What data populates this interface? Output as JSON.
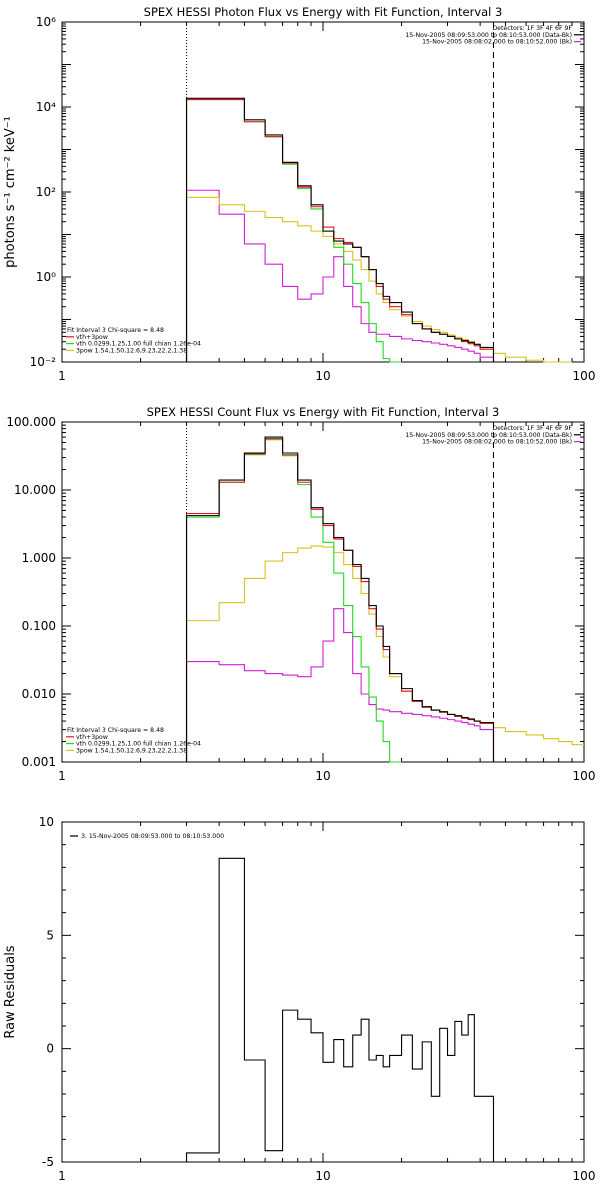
{
  "colors": {
    "data": "#000000",
    "total": "#e8141e",
    "thermal": "#22d81e",
    "powerlaw": "#d8c31e",
    "background": "#d01ed8"
  },
  "chart_data": [
    {
      "type": "line",
      "step": true,
      "title": "SPEX HESSI Photon Flux vs Energy with Fit Function, Interval 3",
      "xlabel": "",
      "ylabel": "photons s⁻¹ cm⁻² keV⁻¹",
      "xscale": "log",
      "yscale": "log",
      "xlim": [
        1,
        100
      ],
      "ylim": [
        0.01,
        1000000
      ],
      "x_ticks": [
        "1",
        "10",
        "100"
      ],
      "y_ticks": [
        "10⁻²",
        "10⁰",
        "10²",
        "10⁴",
        "10⁶"
      ],
      "vertical_lines": [
        {
          "x": 3,
          "style": "dotted"
        },
        {
          "x": 45,
          "style": "dashed"
        }
      ],
      "legend_top": [
        "Detectors: 1F 3F 4F 6F 9F",
        "15-Nov-2005 08:09:53.000 to 08:10:53.000 (Data-Bk)",
        "15-Nov-2005 08:08:02.000 to 08:10:52.000 (Bk)"
      ],
      "legend_bottom": [
        "Fit Interval 3    Chi-square = 8.48",
        "vth+3pow",
        "vth 0.0299,1.25,1.00  full chian 1.26e-04",
        "3pow 1.54,1.50,12.6,9.23,22.2,1.38"
      ],
      "edges": [
        3,
        4,
        5,
        6,
        7,
        8,
        9,
        10,
        11,
        12,
        13,
        14,
        15,
        16,
        17,
        18,
        20,
        22,
        24,
        26,
        28,
        30,
        32,
        34,
        36,
        38,
        40,
        45,
        50,
        60,
        70,
        80,
        90
      ],
      "series": [
        {
          "name": "Data-Bk",
          "color": "#000000",
          "values": [
            16000,
            16000,
            5000,
            2200,
            500,
            140,
            50,
            12,
            7,
            6,
            5,
            3,
            1.5,
            0.7,
            0.35,
            0.25,
            0.15,
            0.08,
            0.06,
            0.05,
            0.045,
            0.04,
            0.035,
            0.032,
            0.029,
            0.026,
            0.022,
            null,
            null,
            null,
            null,
            null
          ]
        },
        {
          "name": "vth+3pow",
          "color": "#e8141e",
          "values": [
            15000,
            15000,
            4500,
            2000,
            480,
            130,
            45,
            15,
            8,
            6.5,
            5,
            3,
            1.5,
            0.6,
            0.3,
            0.2,
            0.13,
            0.08,
            0.06,
            0.05,
            0.045,
            0.04,
            0.035,
            0.03,
            0.027,
            0.024,
            0.02,
            null,
            null,
            null,
            null,
            null
          ]
        },
        {
          "name": "vth",
          "color": "#22d81e",
          "values": [
            15000,
            15000,
            4500,
            2000,
            450,
            120,
            40,
            12,
            5,
            2,
            0.7,
            0.25,
            0.08,
            0.03,
            0.012,
            0.005,
            null,
            null,
            null,
            null,
            null,
            null,
            null,
            null,
            null,
            null,
            null,
            null,
            null,
            null,
            null,
            null
          ]
        },
        {
          "name": "3pow",
          "color": "#d8c31e",
          "values": [
            75,
            50,
            35,
            25,
            20,
            16,
            12,
            9,
            6,
            4,
            2.5,
            1.5,
            0.8,
            0.4,
            0.25,
            0.17,
            0.12,
            0.09,
            0.07,
            0.058,
            0.05,
            0.043,
            0.038,
            0.034,
            0.03,
            0.026,
            0.02,
            0.016,
            0.013,
            0.011,
            0.01,
            0.01
          ]
        },
        {
          "name": "Bk",
          "color": "#d01ed8",
          "values": [
            110,
            30,
            6,
            2,
            0.6,
            0.3,
            0.4,
            1,
            3,
            0.6,
            0.2,
            0.08,
            0.05,
            0.045,
            0.045,
            0.04,
            0.035,
            0.032,
            0.03,
            0.028,
            0.026,
            0.024,
            0.022,
            0.02,
            0.018,
            0.016,
            0.013,
            null,
            null,
            null,
            null,
            null
          ]
        }
      ]
    },
    {
      "type": "line",
      "step": true,
      "title": "SPEX HESSI Count Flux vs Energy with Fit Function, Interval 3",
      "xlabel": "",
      "ylabel": "",
      "xscale": "log",
      "yscale": "log",
      "xlim": [
        1,
        100
      ],
      "ylim": [
        0.001,
        100
      ],
      "x_ticks": [
        "1",
        "10",
        "100"
      ],
      "y_ticks": [
        "0.001",
        "0.010",
        "0.100",
        "1.000",
        "10.000",
        "100.000"
      ],
      "vertical_lines": [
        {
          "x": 3,
          "style": "dotted"
        },
        {
          "x": 45,
          "style": "dashed"
        }
      ],
      "legend_top": [
        "Detectors: 1F 3F 4F 6F 9F",
        "15-Nov-2005 08:09:53.000 to 08:10:53.000 (Data-Bk)",
        "15-Nov-2005 08:08:02.000 to 08:10:52.000 (Bk)"
      ],
      "legend_bottom": [
        "Fit Interval 3    Chi-square = 8.48",
        "vth+3pow",
        "vth 0.0299,1.25,1.00  full chian 1.26e-04",
        "3pow 1.54,1.50,12.6,9.23,22.2,1.38"
      ],
      "edges": [
        3,
        4,
        5,
        6,
        7,
        8,
        9,
        10,
        11,
        12,
        13,
        14,
        15,
        16,
        17,
        18,
        20,
        22,
        24,
        26,
        28,
        30,
        32,
        34,
        36,
        38,
        40,
        45,
        50,
        60,
        70,
        80,
        90,
        100
      ],
      "series": [
        {
          "name": "Data-Bk",
          "color": "#000000",
          "values": [
            4.2,
            14,
            35,
            60,
            35,
            14,
            5.5,
            3.2,
            2.0,
            1.3,
            0.8,
            0.5,
            0.2,
            0.1,
            0.05,
            0.02,
            0.012,
            0.008,
            0.0065,
            0.0058,
            0.0055,
            0.005,
            0.0048,
            0.0045,
            0.0043,
            0.004,
            0.0038,
            null,
            null,
            null,
            null,
            null,
            null
          ]
        },
        {
          "name": "vth+3pow",
          "color": "#e8141e",
          "values": [
            4.5,
            13,
            34,
            57,
            33,
            13,
            5.2,
            3.0,
            1.9,
            1.3,
            0.75,
            0.45,
            0.18,
            0.09,
            0.045,
            0.02,
            0.011,
            0.0078,
            0.0064,
            0.0058,
            0.0054,
            0.005,
            0.0047,
            0.0044,
            0.0042,
            0.004,
            0.0037,
            null,
            null,
            null,
            null,
            null,
            null
          ]
        },
        {
          "name": "vth",
          "color": "#22d81e",
          "values": [
            4.0,
            13,
            33,
            55,
            32,
            12,
            4.0,
            1.7,
            0.6,
            0.2,
            0.07,
            0.025,
            0.009,
            0.004,
            0.002,
            0.0009,
            null,
            null,
            null,
            null,
            null,
            null,
            null,
            null,
            null,
            null,
            null,
            null,
            null,
            null,
            null,
            null,
            null
          ]
        },
        {
          "name": "3pow",
          "color": "#d8c31e",
          "values": [
            0.12,
            0.22,
            0.5,
            0.9,
            1.2,
            1.4,
            1.5,
            1.45,
            1.2,
            0.8,
            0.5,
            0.3,
            0.15,
            0.07,
            0.035,
            0.018,
            0.011,
            0.0078,
            0.0064,
            0.0058,
            0.0054,
            0.005,
            0.0047,
            0.0044,
            0.0042,
            0.004,
            0.0037,
            0.0032,
            0.0028,
            0.0025,
            0.0022,
            0.002,
            0.0018
          ]
        },
        {
          "name": "Bk",
          "color": "#d01ed8",
          "values": [
            0.03,
            0.027,
            0.022,
            0.02,
            0.019,
            0.018,
            0.025,
            0.06,
            0.18,
            0.08,
            0.02,
            0.01,
            0.007,
            0.006,
            0.0058,
            0.0055,
            0.0052,
            0.005,
            0.0048,
            0.0046,
            0.0044,
            0.0042,
            0.004,
            0.0038,
            0.0036,
            0.0034,
            0.003,
            null,
            null,
            null,
            null,
            null,
            null
          ]
        }
      ]
    },
    {
      "type": "line",
      "step": true,
      "title": "",
      "xlabel": "",
      "ylabel": "Raw Residuals",
      "xscale": "log",
      "yscale": "linear",
      "xlim": [
        1,
        100
      ],
      "ylim": [
        -5,
        10
      ],
      "x_ticks": [
        "1",
        "10",
        "100"
      ],
      "y_ticks": [
        "-5",
        "0",
        "5",
        "10"
      ],
      "legend_top": [
        "3. 15-Nov-2005 08:09:53.000 to 08:10:53.000"
      ],
      "edges": [
        3,
        4,
        5,
        6,
        7,
        8,
        9,
        10,
        11,
        12,
        13,
        14,
        15,
        16,
        17,
        18,
        20,
        22,
        24,
        26,
        28,
        30,
        32,
        34,
        36,
        38,
        40,
        45
      ],
      "series": [
        {
          "name": "3. 15-Nov-2005 08:09:53.000 to 08:10:53.000",
          "color": "#000000",
          "values": [
            -4.6,
            8.4,
            -0.5,
            -4.5,
            1.7,
            1.3,
            0.7,
            -0.6,
            0.4,
            -0.8,
            0.6,
            1.3,
            -0.5,
            -0.3,
            -0.8,
            -0.3,
            0.6,
            -0.9,
            0.3,
            -2.1,
            0.9,
            -0.3,
            1.2,
            0.6,
            1.5,
            -2.1,
            -2.1
          ]
        }
      ]
    }
  ]
}
